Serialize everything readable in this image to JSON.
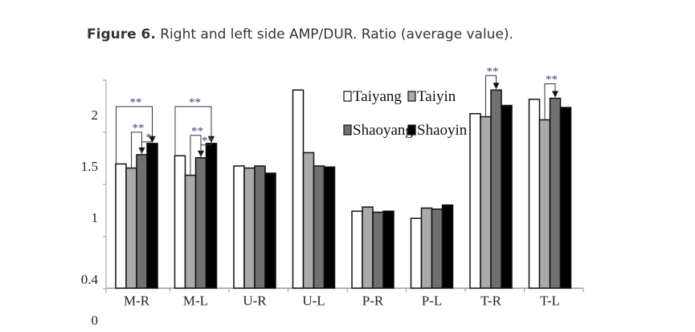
{
  "caption": {
    "label": "Figure 6.",
    "text": " Right and left side AMP/DUR. Ratio (average value)."
  },
  "chart_data": {
    "type": "bar",
    "title": "",
    "xlabel": "",
    "ylabel": "",
    "categories": [
      "M-R",
      "M-L",
      "U-R",
      "U-L",
      "P-R",
      "P-L",
      "T-R",
      "T-L"
    ],
    "y_tick_labels": [
      "0",
      "0.4",
      "1",
      "1.5",
      "2"
    ],
    "y_tick_values": [
      0,
      0.4,
      1,
      1.5,
      2
    ],
    "ylim": [
      0.31,
      2.35
    ],
    "grid": false,
    "legend_position": "top-center",
    "series": [
      {
        "name": "Taiyang",
        "color": "#ffffff",
        "values": [
          1.52,
          1.6,
          1.5,
          2.24,
          1.06,
          0.99,
          2.01,
          2.15
        ]
      },
      {
        "name": "Taiyin",
        "color": "#aaaaaa",
        "values": [
          1.48,
          1.41,
          1.48,
          1.63,
          1.1,
          1.09,
          1.98,
          1.95
        ]
      },
      {
        "name": "Shaoyang",
        "color": "#707070",
        "values": [
          1.61,
          1.58,
          1.5,
          1.5,
          1.05,
          1.08,
          2.24,
          2.16
        ]
      },
      {
        "name": "Shaoyin",
        "color": "#000000",
        "values": [
          1.72,
          1.72,
          1.43,
          1.49,
          1.06,
          1.12,
          2.09,
          2.07
        ]
      }
    ],
    "annotations": [
      {
        "category": "M-R",
        "from": "Taiyang",
        "to": "Shaoyin",
        "label": "**"
      },
      {
        "category": "M-R",
        "from": "Taiyin",
        "to": "Shaoyang",
        "label": "**"
      },
      {
        "category": "M-R",
        "from": "Shaoyang",
        "to": "Shaoyin",
        "label": "*"
      },
      {
        "category": "M-L",
        "from": "Taiyang",
        "to": "Shaoyin",
        "label": "**"
      },
      {
        "category": "M-L",
        "from": "Taiyin",
        "to": "Shaoyang",
        "label": "**"
      },
      {
        "category": "M-L",
        "from": "Shaoyang",
        "to": "Shaoyin",
        "label": "**"
      },
      {
        "category": "T-R",
        "from": "Taiyin",
        "to": "Shaoyang",
        "label": "**"
      },
      {
        "category": "T-L",
        "from": "Taiyin",
        "to": "Shaoyang",
        "label": "**"
      }
    ]
  }
}
